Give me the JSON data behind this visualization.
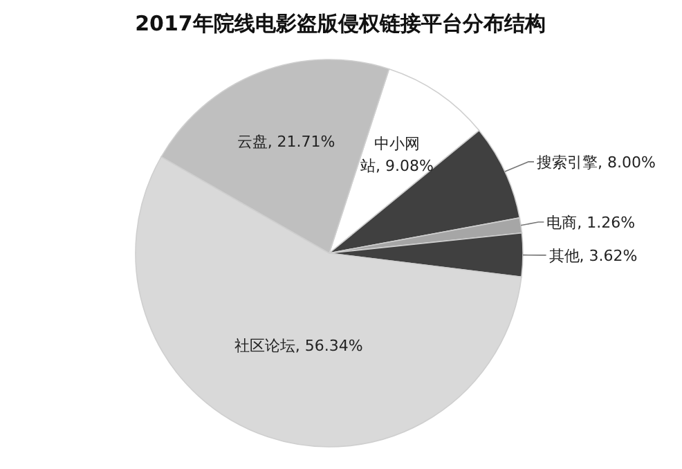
{
  "chart_data": {
    "type": "pie",
    "title": "2017年院线电影盗版侵权链接平台分布结构",
    "categories": [
      "中小网站",
      "搜索引擎",
      "电商",
      "其他",
      "社区论坛",
      "云盘"
    ],
    "values": [
      9.08,
      8.0,
      1.26,
      3.62,
      56.34,
      21.71
    ],
    "value_labels": [
      "9.08%",
      "8.00%",
      "1.26%",
      "3.62%",
      "56.34%",
      "21.71%"
    ],
    "colors": [
      "#ffffff",
      "#404040",
      "#a6a6a6",
      "#404040",
      "#d9d9d9",
      "#bfbfbf"
    ],
    "legend": false
  }
}
